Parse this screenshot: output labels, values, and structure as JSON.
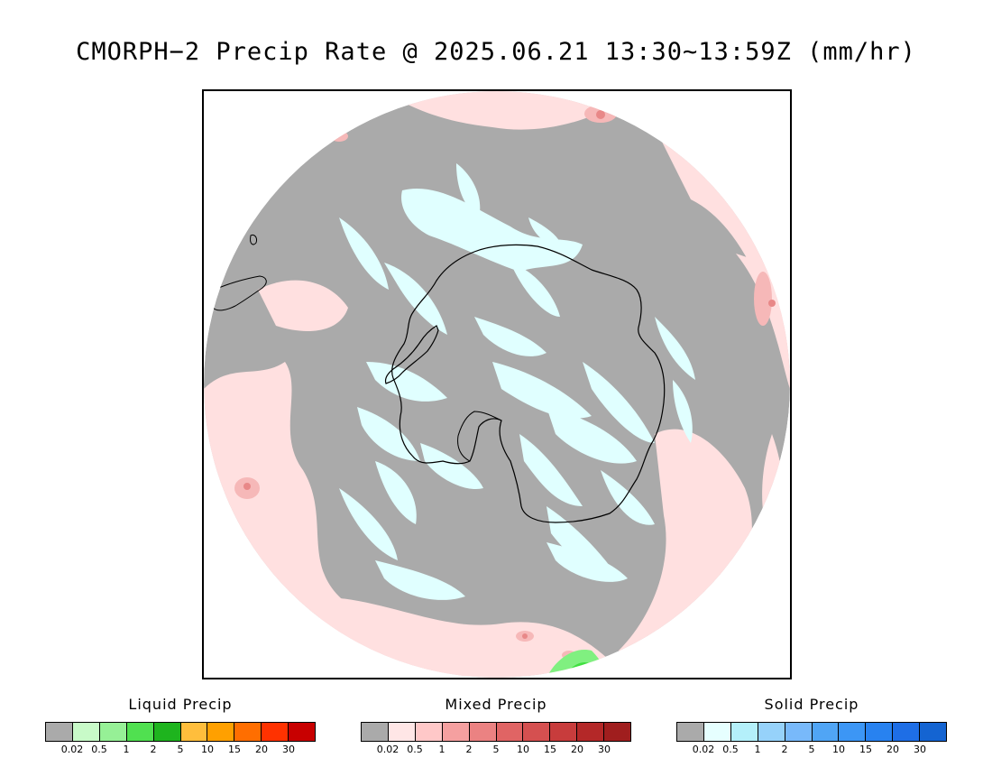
{
  "title": "CMORPH−2 Precip Rate @ 2025.06.21 13:30~13:59Z (mm/hr)",
  "map": {
    "projection": "south-polar-stereographic",
    "colors": {
      "no_precip": "#aaaaaa",
      "mixed_light": "#ffe0e0",
      "mixed_moderate": "#f6b8b8",
      "mixed_heavy": "#e88888",
      "solid_light": "#e0ffff",
      "liquid_light": "#80f080",
      "liquid_moderate": "#40e040",
      "coastline": "#000000"
    }
  },
  "legends": [
    {
      "title": "Liquid Precip",
      "colors": [
        "#aaaaaa",
        "#c8fac8",
        "#96f096",
        "#50e050",
        "#1eb41e",
        "#ffbe3c",
        "#ffa000",
        "#ff6e00",
        "#ff3200",
        "#c80000"
      ],
      "ticks": [
        "0.02",
        "0.5",
        "1",
        "2",
        "5",
        "10",
        "15",
        "20",
        "30"
      ]
    },
    {
      "title": "Mixed Precip",
      "colors": [
        "#aaaaaa",
        "#ffe6e6",
        "#ffc8c8",
        "#f5a0a0",
        "#eb8282",
        "#e06464",
        "#d55050",
        "#c83c3c",
        "#b42828",
        "#a01e1e"
      ],
      "ticks": [
        "0.02",
        "0.5",
        "1",
        "2",
        "5",
        "10",
        "15",
        "20",
        "30"
      ]
    },
    {
      "title": "Solid Precip",
      "colors": [
        "#aaaaaa",
        "#e6ffff",
        "#b4f0fa",
        "#96d2fa",
        "#78b9fa",
        "#50a5f5",
        "#3c96f5",
        "#2882f0",
        "#1e6ee6",
        "#1464d2"
      ],
      "ticks": [
        "0.02",
        "0.5",
        "1",
        "2",
        "5",
        "10",
        "15",
        "20",
        "30"
      ]
    }
  ]
}
